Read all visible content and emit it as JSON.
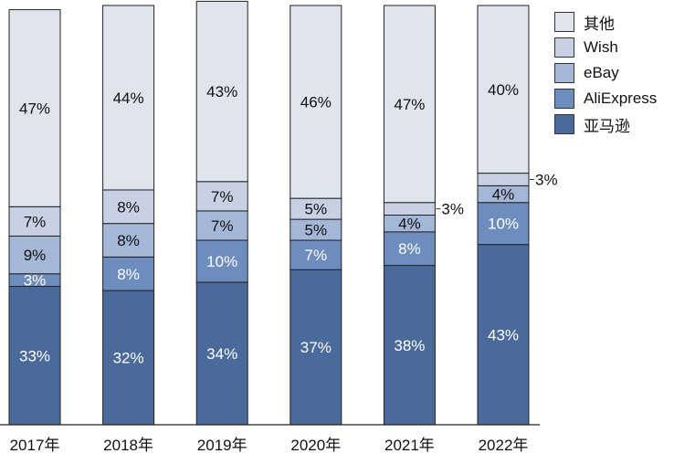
{
  "chart_data": {
    "type": "bar",
    "stacked": true,
    "categories": [
      "2017年",
      "2018年",
      "2019年",
      "2020年",
      "2021年",
      "2022年"
    ],
    "series": [
      {
        "name": "亚马逊",
        "values": [
          33,
          32,
          34,
          37,
          38,
          43
        ],
        "color": "#4a6a9c",
        "label_color": "#ffffff"
      },
      {
        "name": "AliExpress",
        "values": [
          3,
          8,
          10,
          7,
          8,
          10
        ],
        "color": "#6d8dbe",
        "label_color": "#ffffff"
      },
      {
        "name": "eBay",
        "values": [
          9,
          8,
          7,
          5,
          4,
          4
        ],
        "color": "#a4b7d6",
        "label_color": "#111111"
      },
      {
        "name": "Wish",
        "values": [
          7,
          8,
          7,
          5,
          3,
          3
        ],
        "color": "#c7d1e3",
        "label_color": "#111111"
      },
      {
        "name": "其他",
        "values": [
          47,
          44,
          43,
          46,
          47,
          40
        ],
        "color": "#dfe4ed",
        "label_color": "#111111"
      }
    ],
    "labels": {
      "亚马逊": [
        "33%",
        "32%",
        "34%",
        "37%",
        "38%",
        "43%"
      ],
      "AliExpress": [
        "3%",
        "8%",
        "10%",
        "7%",
        "8%",
        "10%"
      ],
      "eBay": [
        "9%",
        "8%",
        "7%",
        "5%",
        "4%",
        "4%"
      ],
      "Wish": [
        "7%",
        "8%",
        "7%",
        "5%",
        "3%",
        "3%"
      ],
      "其他": [
        "47%",
        "44%",
        "43%",
        "46%",
        "47%",
        "40%"
      ]
    },
    "outside_labels": {
      "Wish": [
        false,
        false,
        false,
        false,
        true,
        true
      ]
    },
    "ylim": [
      0,
      100
    ],
    "legend_position": "top-right",
    "legend_order": [
      "其他",
      "Wish",
      "eBay",
      "AliExpress",
      "亚马逊"
    ]
  }
}
